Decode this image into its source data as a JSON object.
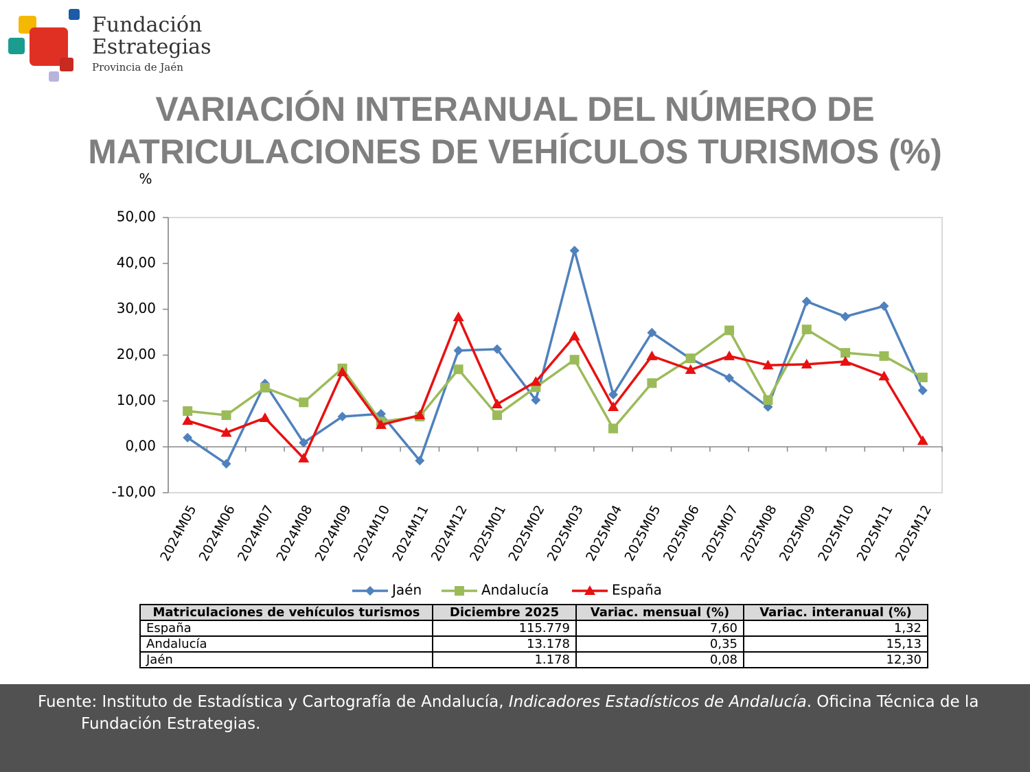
{
  "logo": {
    "name1": "Fundación",
    "name2": "Estrategias",
    "subtitle": "Provincia de Jaén"
  },
  "title": {
    "lines": [
      "VARIACIÓN INTERANUAL DEL NÚMERO DE",
      "MATRICULACIONES DE VEHÍCULOS TURISMOS (%)"
    ]
  },
  "chart_data": {
    "type": "line",
    "y_label": "%",
    "categories": [
      "2024M05",
      "2024M06",
      "2024M07",
      "2024M08",
      "2024M09",
      "2024M10",
      "2024M11",
      "2024M12",
      "2025M01",
      "2025M02",
      "2025M03",
      "2025M04",
      "2025M05",
      "2025M06",
      "2025M07",
      "2025M08",
      "2025M09",
      "2025M10",
      "2025M11",
      "2025M12"
    ],
    "series": [
      {
        "name": "Jaén",
        "color": "#4f81bd",
        "marker": "diamond",
        "values": [
          2.0,
          -3.7,
          13.8,
          0.9,
          6.6,
          7.2,
          -3.0,
          21.0,
          21.3,
          10.2,
          42.8,
          11.4,
          24.9,
          19.2,
          15.0,
          8.7,
          31.7,
          28.4,
          30.7,
          12.3
        ]
      },
      {
        "name": "Andalucía",
        "color": "#9bbb59",
        "marker": "square",
        "values": [
          7.8,
          6.9,
          12.9,
          9.7,
          17.1,
          5.5,
          6.6,
          16.9,
          6.9,
          13.0,
          19.0,
          4.0,
          13.9,
          19.3,
          25.4,
          10.2,
          25.6,
          20.5,
          19.8,
          15.13
        ]
      },
      {
        "name": "España",
        "color": "#e81010",
        "marker": "triangle",
        "values": [
          5.7,
          3.1,
          6.3,
          -2.5,
          16.3,
          4.8,
          6.9,
          28.3,
          9.3,
          14.2,
          24.1,
          8.7,
          19.8,
          16.8,
          19.8,
          17.8,
          18.0,
          18.6,
          15.4,
          1.32
        ]
      }
    ],
    "ylim": [
      -10,
      50
    ],
    "yticks": [
      {
        "value": -10,
        "label": "-10,00"
      },
      {
        "value": 0,
        "label": "0,00"
      },
      {
        "value": 10,
        "label": "10,00"
      },
      {
        "value": 20,
        "label": "20,00"
      },
      {
        "value": 30,
        "label": "30,00"
      },
      {
        "value": 40,
        "label": "40,00"
      },
      {
        "value": 50,
        "label": "50,00"
      }
    ],
    "legend": "bottom"
  },
  "table": {
    "header": [
      "Matriculaciones de vehículos turismos",
      "Diciembre 2025",
      "Variac. mensual (%)",
      "Variac. interanual (%)"
    ],
    "rows": [
      [
        "España",
        "115.779",
        "7,60",
        "1,32"
      ],
      [
        "Andalucía",
        "13.178",
        "0,35",
        "15,13"
      ],
      [
        "Jaén",
        "1.178",
        "0,08",
        "12,30"
      ]
    ]
  },
  "source": {
    "parts": [
      "Fuente: Instituto de Estadística y Cartografía de Andalucía, ",
      "Indicadores Estadísticos de Andalucía",
      ". Oficina Técnica de la Fundación Estrategias."
    ]
  }
}
